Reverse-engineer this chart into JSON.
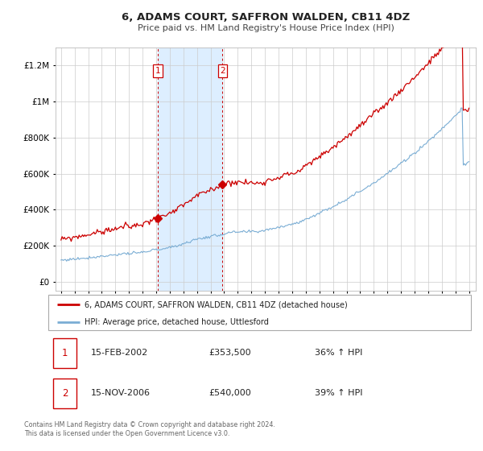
{
  "title": "6, ADAMS COURT, SAFFRON WALDEN, CB11 4DZ",
  "subtitle": "Price paid vs. HM Land Registry's House Price Index (HPI)",
  "legend_line1": "6, ADAMS COURT, SAFFRON WALDEN, CB11 4DZ (detached house)",
  "legend_line2": "HPI: Average price, detached house, Uttlesford",
  "sale1_date": "15-FEB-2002",
  "sale1_price": "£353,500",
  "sale1_hpi": "36% ↑ HPI",
  "sale2_date": "15-NOV-2006",
  "sale2_price": "£540,000",
  "sale2_hpi": "39% ↑ HPI",
  "footnote1": "Contains HM Land Registry data © Crown copyright and database right 2024.",
  "footnote2": "This data is licensed under the Open Government Licence v3.0.",
  "red_color": "#cc0000",
  "blue_color": "#7aadd4",
  "shade_color": "#ddeeff",
  "sale1_x": 2002.12,
  "sale2_x": 2006.88,
  "ylim_max": 1300000,
  "ylim_min": -50000,
  "xlim_min": 1994.6,
  "xlim_max": 2025.5,
  "sale1_price_val": 353500,
  "sale2_price_val": 540000
}
